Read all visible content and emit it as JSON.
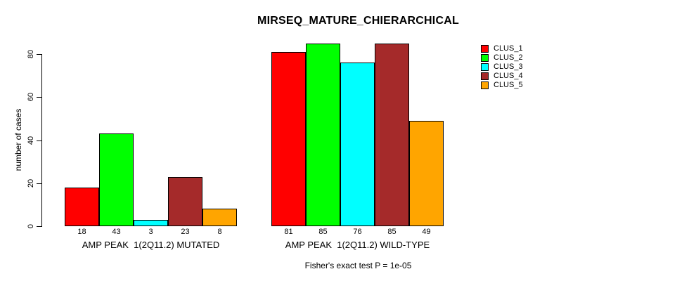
{
  "chart_data": {
    "type": "bar",
    "title": "MIRSEQ_MATURE_CHIERARCHICAL",
    "ylabel": "number of cases",
    "footnote": "Fisher's exact test P = 1e-05",
    "ylim": [
      0,
      80
    ],
    "yticks": [
      0,
      20,
      40,
      60,
      80
    ],
    "grid": false,
    "legend_position": "right",
    "categories": [
      "AMP PEAK  1(2Q11.2) MUTATED",
      "AMP PEAK  1(2Q11.2) WILD-TYPE"
    ],
    "series": [
      {
        "name": "CLUS_1",
        "color": "#ff0000",
        "values": [
          18,
          81
        ]
      },
      {
        "name": "CLUS_2",
        "color": "#00ff00",
        "values": [
          43,
          85
        ]
      },
      {
        "name": "CLUS_3",
        "color": "#00ffff",
        "values": [
          3,
          76
        ]
      },
      {
        "name": "CLUS_4",
        "color": "#a52a2a",
        "values": [
          23,
          85
        ]
      },
      {
        "name": "CLUS_5",
        "color": "#ffa500",
        "values": [
          8,
          49
        ]
      }
    ],
    "bar_border_color": "#000000",
    "axis_color": "#000000",
    "background_color": "#ffffff"
  }
}
